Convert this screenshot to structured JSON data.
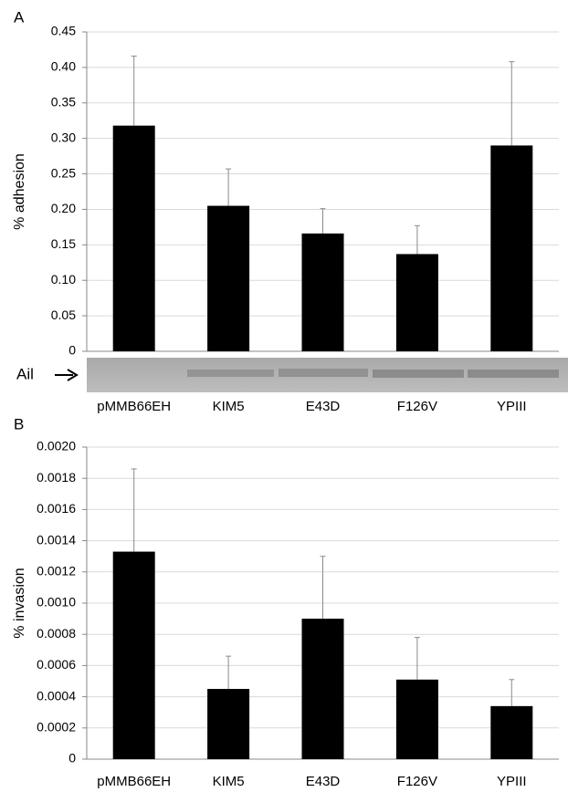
{
  "chart_data": [
    {
      "type": "bar",
      "panel_label": "A",
      "y_label": "% adhesion",
      "blot_label": "Ail",
      "categories": [
        "pMMB66EH",
        "KIM5",
        "E43D",
        "F126V",
        "YPIII"
      ],
      "values": [
        0.318,
        0.205,
        0.166,
        0.137,
        0.29
      ],
      "errors": [
        0.098,
        0.052,
        0.035,
        0.04,
        0.118
      ],
      "color": "#000000",
      "grid": true,
      "ylim": [
        0,
        0.45
      ],
      "yticks": [
        0,
        0.05,
        {
          "value": 0.1,
          "label": "0.10"
        },
        0.15,
        {
          "value": 0.2,
          "label": "0.20"
        },
        0.25,
        {
          "value": 0.3,
          "label": "0.30"
        },
        0.35,
        {
          "value": 0.4,
          "label": "0.40"
        },
        0.45
      ]
    },
    {
      "type": "bar",
      "panel_label": "B",
      "y_label": "% invasion",
      "categories": [
        "pMMB66EH",
        "KIM5",
        "E43D",
        "F126V",
        "YPIII"
      ],
      "values": [
        0.00133,
        0.00045,
        0.0009,
        0.00051,
        0.00034
      ],
      "errors": [
        0.00053,
        0.00021,
        0.0004,
        0.00027,
        0.00017
      ],
      "color": "#000000",
      "grid": true,
      "ylim": [
        0,
        0.002
      ],
      "yticks": [
        0,
        0.0002,
        0.0004,
        0.0006,
        0.0008,
        {
          "value": 0.001,
          "label": "0.0010"
        },
        0.0012,
        0.0014,
        0.0016,
        0.0018,
        {
          "value": 0.002,
          "label": "0.0020"
        }
      ]
    }
  ]
}
